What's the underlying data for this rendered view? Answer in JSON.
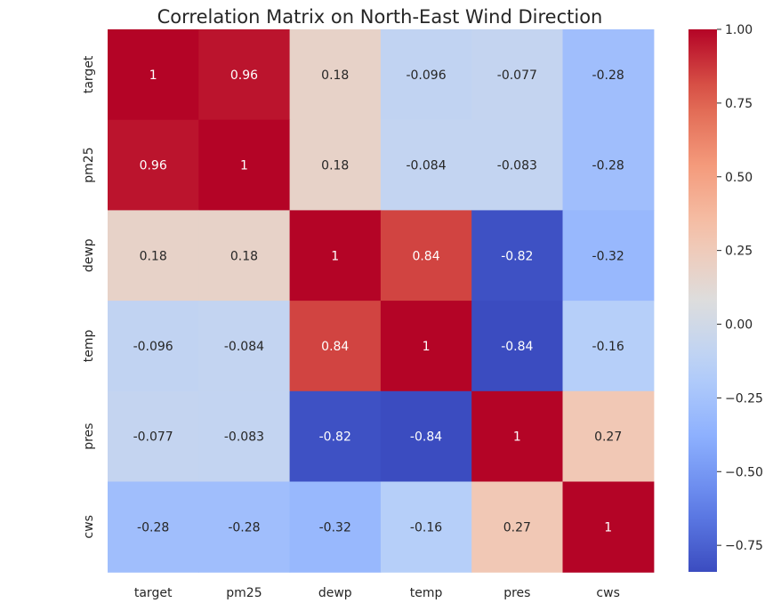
{
  "chart_data": {
    "type": "heatmap",
    "title": "Correlation Matrix on North-East Wind Direction",
    "xlabel": "",
    "ylabel": "",
    "x_categories": [
      "target",
      "pm25",
      "dewp",
      "temp",
      "pres",
      "cws"
    ],
    "y_categories": [
      "target",
      "pm25",
      "dewp",
      "temp",
      "pres",
      "cws"
    ],
    "values": [
      [
        1,
        0.96,
        0.18,
        -0.096,
        -0.077,
        -0.28
      ],
      [
        0.96,
        1,
        0.18,
        -0.084,
        -0.083,
        -0.28
      ],
      [
        0.18,
        0.18,
        1,
        0.84,
        -0.82,
        -0.32
      ],
      [
        -0.096,
        -0.084,
        0.84,
        1,
        -0.84,
        -0.16
      ],
      [
        -0.077,
        -0.083,
        -0.82,
        -0.84,
        1,
        0.27
      ],
      [
        -0.28,
        -0.28,
        -0.32,
        -0.16,
        0.27,
        1
      ]
    ],
    "annotations": [
      [
        "1",
        "0.96",
        "0.18",
        "-0.096",
        "-0.077",
        "-0.28"
      ],
      [
        "0.96",
        "1",
        "0.18",
        "-0.084",
        "-0.083",
        "-0.28"
      ],
      [
        "0.18",
        "0.18",
        "1",
        "0.84",
        "-0.82",
        "-0.32"
      ],
      [
        "-0.096",
        "-0.084",
        "0.84",
        "1",
        "-0.84",
        "-0.16"
      ],
      [
        "-0.077",
        "-0.083",
        "-0.82",
        "-0.84",
        "1",
        "0.27"
      ],
      [
        "-0.28",
        "-0.28",
        "-0.32",
        "-0.16",
        "0.27",
        "1"
      ]
    ],
    "colormap": "coolwarm",
    "color_range": [
      -0.84,
      1
    ],
    "colorbar": {
      "ticks": [
        1.0,
        0.75,
        0.5,
        0.25,
        0.0,
        -0.25,
        -0.5,
        -0.75
      ],
      "tick_labels": [
        "1.00",
        "0.75",
        "0.50",
        "0.25",
        "0.00",
        "−0.25",
        "−0.50",
        "−0.75"
      ]
    },
    "grid": false,
    "legend": "colorbar-right"
  }
}
